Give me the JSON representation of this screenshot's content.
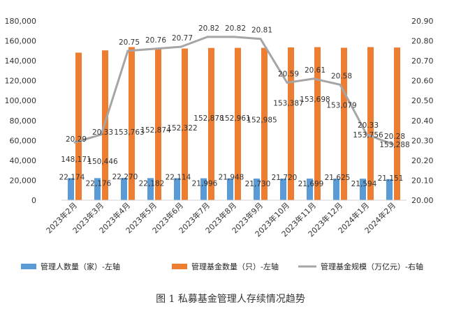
{
  "chart_data": {
    "type": "bar",
    "caption": "图 1  私募基金管理人存续情况趋势",
    "categories": [
      "2023年2月",
      "2023年3月",
      "2023年4月",
      "2023年5月",
      "2023年6月",
      "2023年7月",
      "2023年8月",
      "2023年9月",
      "2023年10月",
      "2023年11月",
      "2023年12月",
      "2024年1月",
      "2024年2月"
    ],
    "y_left": {
      "min": 0,
      "max": 180000,
      "step": 20000
    },
    "y_right": {
      "min": 20.0,
      "max": 20.9,
      "step": 0.1
    },
    "grid": false,
    "legend_position": "bottom",
    "series": [
      {
        "name": "管理人数量（家）-左轴",
        "type": "bar",
        "axis": "left",
        "color": "#5b9bd5",
        "values": [
          22174,
          22176,
          22270,
          22182,
          22114,
          21996,
          21948,
          21730,
          21720,
          21699,
          21625,
          21594,
          21151
        ],
        "labels": [
          "22,174",
          "22,176",
          "22,270",
          "22,182",
          "22,114",
          "21,996",
          "21,948",
          "21,730",
          "21,720",
          "21,699",
          "21,625",
          "21,594",
          "21,151"
        ]
      },
      {
        "name": "管理基金数量（只）-左轴",
        "type": "bar",
        "axis": "left",
        "color": "#ed7d31",
        "values": [
          148171,
          150446,
          153763,
          152874,
          152322,
          152878,
          152961,
          152985,
          153387,
          153698,
          153079,
          153756,
          153288
        ],
        "labels": [
          "148,171",
          "150,446",
          "153,763",
          "152,874",
          "152,322",
          "152,878",
          "152,961",
          "152,985",
          "153,387",
          "153,698",
          "153,079",
          "153,756",
          "153,288"
        ]
      },
      {
        "name": "管理基金规模（万亿元）-右轴",
        "type": "line",
        "axis": "right",
        "color": "#a5a5a5",
        "values": [
          20.29,
          20.33,
          20.75,
          20.76,
          20.77,
          20.82,
          20.82,
          20.81,
          20.59,
          20.61,
          20.58,
          20.33,
          20.28
        ],
        "labels": [
          "20.29",
          "20.33",
          "20.75",
          "20.76",
          "20.77",
          "20.82",
          "20.82",
          "20.81",
          "20.59",
          "20.61",
          "20.58",
          "20.33",
          "20.28"
        ]
      }
    ]
  }
}
